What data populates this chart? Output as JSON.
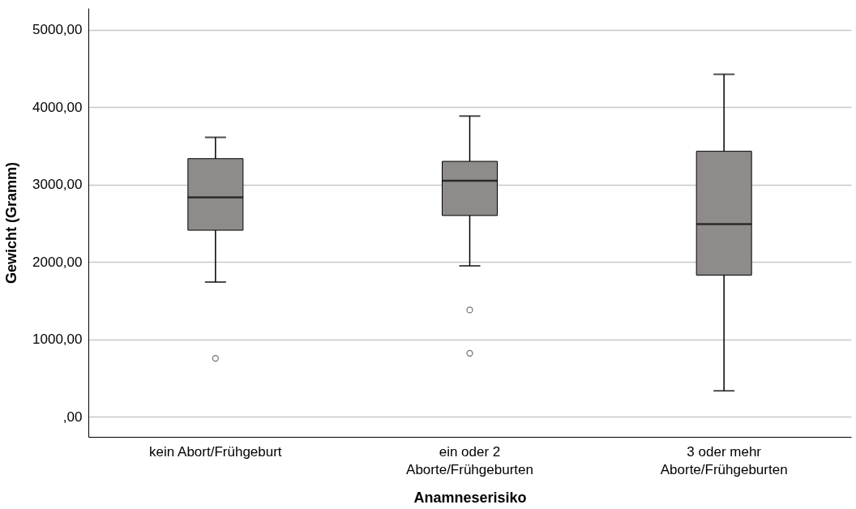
{
  "chart_data": {
    "type": "box",
    "xlabel": "Anamneserisiko",
    "ylabel": "Gewicht (Gramm)",
    "categories": [
      "kein Abort/Frühgeburt",
      "ein oder 2\nAborte/Frühgeburten",
      "3 oder mehr\nAborte/Frühgeburten"
    ],
    "boxes": [
      {
        "low": 1740,
        "q1": 2410,
        "median": 2835,
        "q3": 3335,
        "high": 3610,
        "outliers": [
          755
        ]
      },
      {
        "low": 1950,
        "q1": 2600,
        "median": 3050,
        "q3": 3300,
        "high": 3885,
        "outliers": [
          1380,
          820
        ]
      },
      {
        "low": 335,
        "q1": 1830,
        "median": 2490,
        "q3": 3430,
        "high": 4425
      }
    ],
    "color": "#8f8b8b",
    "ylim": [
      -260,
      5280
    ],
    "yticks": [
      {
        "value": 0,
        "label": ",00"
      },
      {
        "value": 1000,
        "label": "1000,00"
      },
      {
        "value": 2000,
        "label": "2000,00"
      },
      {
        "value": 3000,
        "label": "3000,00"
      },
      {
        "value": 4000,
        "label": "4000,00"
      },
      {
        "value": 5000,
        "label": "5000,00"
      }
    ],
    "grid": "y"
  }
}
